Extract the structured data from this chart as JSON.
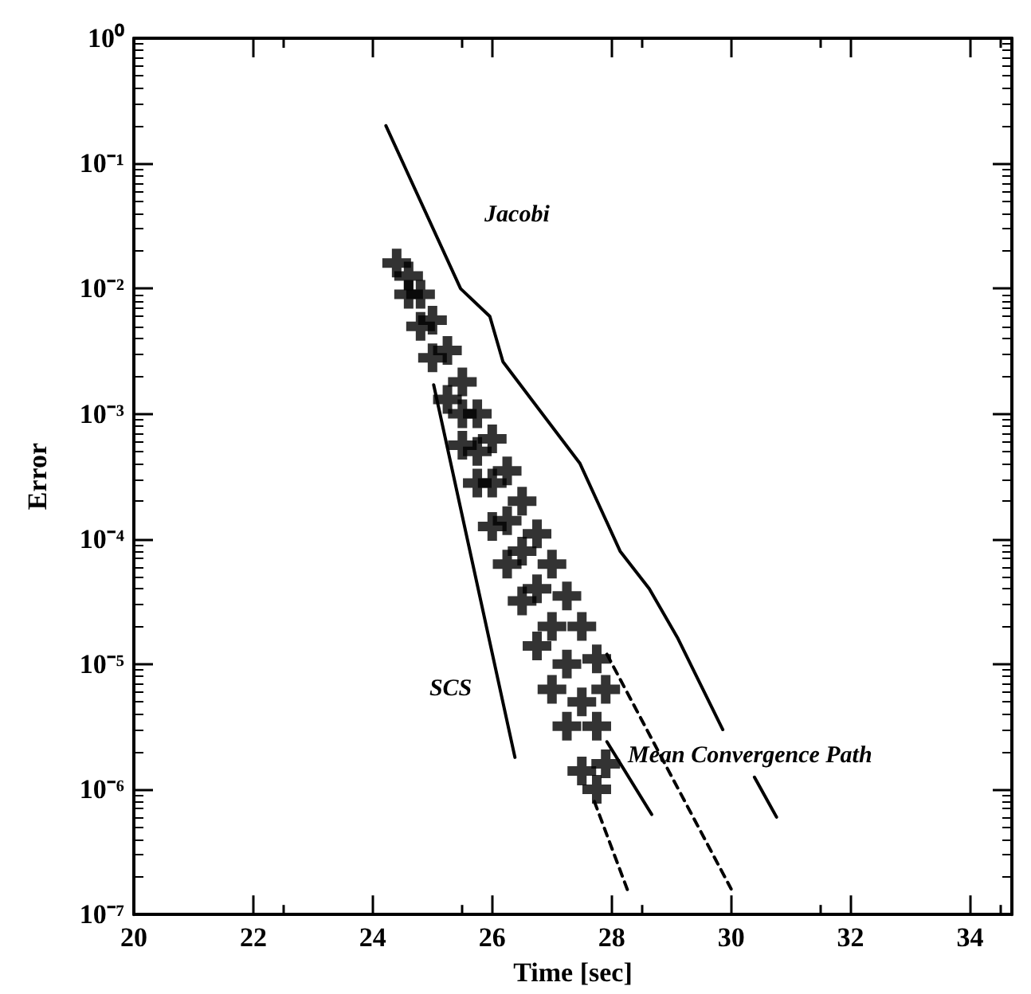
{
  "chart_data": {
    "type": "line",
    "xlabel": "Time [sec]",
    "ylabel": "Error",
    "log": "y",
    "grid": false,
    "legend": false,
    "marker": "none",
    "line_style": "solid",
    "xlim": [
      20,
      34.7
    ],
    "xticks": [
      20,
      22,
      24,
      26,
      28,
      30,
      32,
      34
    ],
    "ylim": [
      1e-07,
      1
    ],
    "yticks": [
      {
        "value": 1,
        "label": "10⁰"
      },
      {
        "value": 0.1,
        "label": "10⁻¹"
      },
      {
        "value": 0.01,
        "label": "10⁻²"
      },
      {
        "value": 0.001,
        "label": "10⁻³"
      },
      {
        "value": 0.0001,
        "label": "10⁻⁴"
      },
      {
        "value": 1e-05,
        "label": "10⁻⁵"
      },
      {
        "value": 1e-06,
        "label": "10⁻⁶"
      },
      {
        "value": 1e-07,
        "label": "10⁻⁷"
      }
    ],
    "series": [
      {
        "name": "Jacobi",
        "color": "#000000",
        "x": [
          24.22,
          25.47,
          25.96,
          26.18,
          27.47,
          28.14,
          28.63,
          29.11,
          29.86,
          30.1,
          30.39,
          30.76
        ],
        "values": [
          0.2,
          0.01,
          0.006,
          0.0026,
          0.0004,
          8e-05,
          4e-05,
          1.6e-05,
          3e-06,
          null,
          1.25e-06,
          6e-07
        ]
      },
      {
        "name": "SCS",
        "color": "#000000",
        "x": [
          25.02,
          26.38
        ],
        "values": [
          0.0017,
          1.8e-06
        ]
      },
      {
        "name": "Mean Convergence Path",
        "color": "#000000",
        "x": [
          27.92,
          28.67
        ],
        "values": [
          2.4e-06,
          6.3e-07
        ]
      },
      {
        "color": "#000000",
        "line_style": "dashed",
        "x": [
          27.71,
          28.28
        ],
        "values": [
          8e-07,
          1.5e-07
        ]
      },
      {
        "color": "#000000",
        "line_style": "dashed",
        "x": [
          27.92,
          30.0
        ],
        "values": [
          1.2e-05,
          1.6e-07
        ]
      },
      {
        "type": "scatter",
        "marker": "cross",
        "color": "#000000",
        "x": [
          24.4,
          24.6,
          24.6,
          24.8,
          24.8,
          25.0,
          25.0,
          25.25,
          25.25,
          25.5,
          25.5,
          25.5,
          25.75,
          25.75,
          25.75,
          26.0,
          26.0,
          26.0,
          26.25,
          26.25,
          26.25,
          26.5,
          26.5,
          26.5,
          26.75,
          26.75,
          26.75,
          27.0,
          27.0,
          27.0,
          27.25,
          27.25,
          27.25,
          27.5,
          27.5,
          27.5,
          27.75,
          27.75,
          27.75,
          27.9,
          27.9
        ],
        "values": [
          0.016,
          0.0126,
          0.009,
          0.009,
          0.005,
          0.0056,
          0.0028,
          0.0032,
          0.0013,
          0.0018,
          0.001,
          0.00056,
          0.001,
          0.0005,
          0.00028,
          0.00063,
          0.00028,
          0.000126,
          0.00035,
          0.00014,
          6.3e-05,
          0.0002,
          8e-05,
          3.2e-05,
          0.00011,
          4e-05,
          1.4e-05,
          6.3e-05,
          2e-05,
          6.3e-06,
          3.5e-05,
          1e-05,
          3.2e-06,
          2e-05,
          5e-06,
          1.4e-06,
          1.1e-05,
          3.2e-06,
          1e-06,
          6.3e-06,
          1.6e-06
        ]
      }
    ]
  }
}
